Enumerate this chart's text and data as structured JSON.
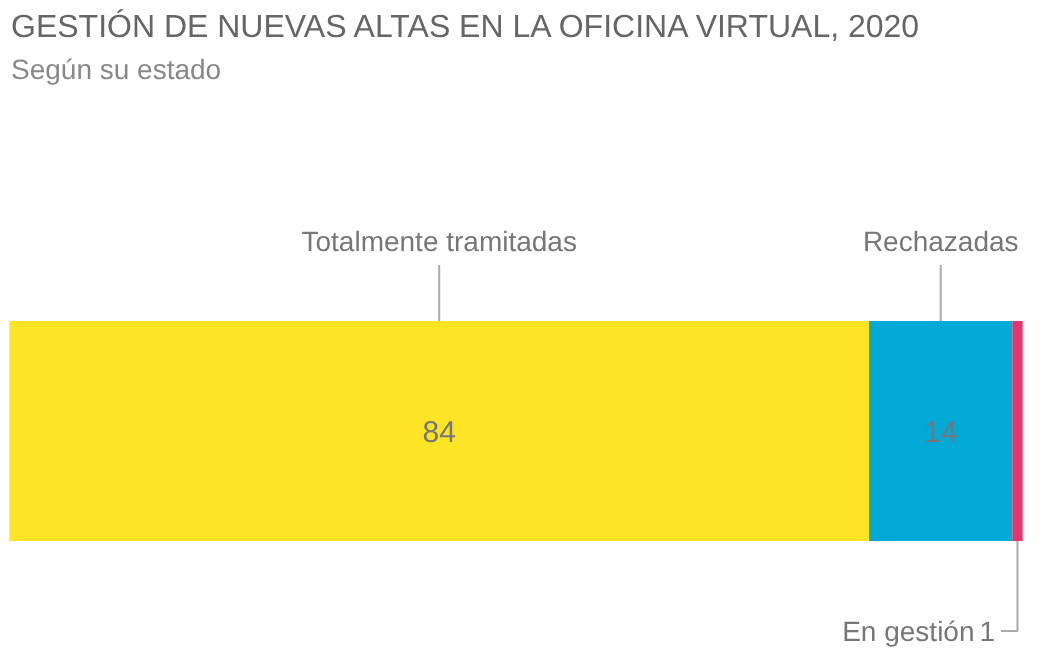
{
  "chart_data": {
    "type": "bar",
    "orientation": "horizontal",
    "stacked": true,
    "title": "GESTIÓN DE NUEVAS ALTAS EN LA OFICINA VIRTUAL, 2020",
    "subtitle": "Según su estado",
    "categories": [
      null
    ],
    "data_labels": true,
    "tick_labels": false,
    "grid": false,
    "series": [
      {
        "name": "Totalmente tramitadas",
        "color": "#fde425",
        "values": [
          84
        ]
      },
      {
        "name": "Rechazadas",
        "color": "#00a9d6",
        "values": [
          14
        ]
      },
      {
        "name": "En gestión",
        "color": "#e8336d",
        "values": [
          1
        ]
      }
    ]
  }
}
